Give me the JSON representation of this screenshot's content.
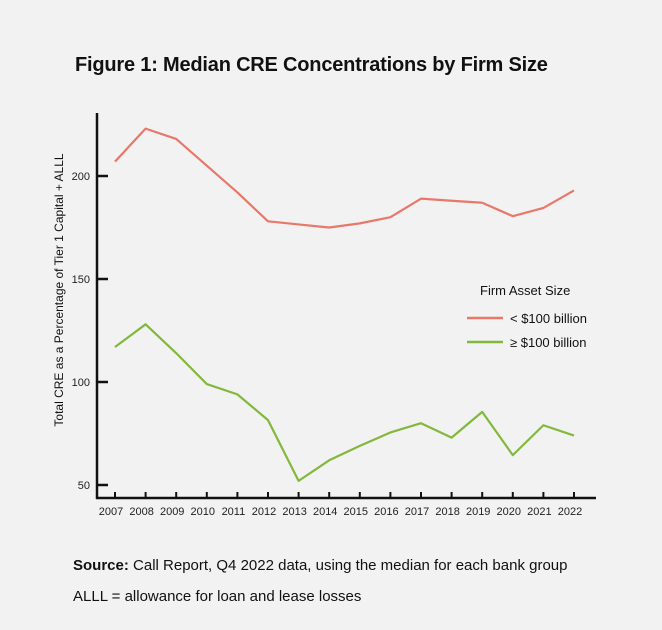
{
  "chart_data": {
    "type": "line",
    "title": "Figure 1: Median CRE Concentrations by Firm Size",
    "xlabel": "",
    "ylabel": "Total CRE as a Percentage of Tier 1 Capital + ALLL",
    "x": [
      "2007",
      "2008",
      "2009",
      "2010",
      "2011",
      "2012",
      "2013",
      "2014",
      "2015",
      "2016",
      "2017",
      "2018",
      "2019",
      "2020",
      "2021",
      "2022"
    ],
    "yticks": [
      50,
      100,
      150,
      200
    ],
    "ylim": [
      45,
      235
    ],
    "grid": false,
    "legend": {
      "title": "Firm Asset Size",
      "placement": "right"
    },
    "series": [
      {
        "name": "< $100 billion",
        "color": "#e8786a",
        "values": [
          207,
          223,
          218,
          205,
          192,
          178,
          176.5,
          175,
          177,
          180,
          189,
          188,
          187,
          180.5,
          184.5,
          193
        ]
      },
      {
        "name": "≥ $100 billion",
        "color": "#82b83c",
        "values": [
          117,
          128,
          114,
          99,
          94,
          81.5,
          52,
          62,
          69,
          75.5,
          80,
          73,
          85.5,
          64.5,
          79,
          74
        ]
      }
    ]
  },
  "notes": {
    "source_label": "Source:",
    "source_text": " Call Report, Q4 2022 data, using the median for each bank group",
    "alll": "ALLL = allowance for loan and lease losses"
  }
}
